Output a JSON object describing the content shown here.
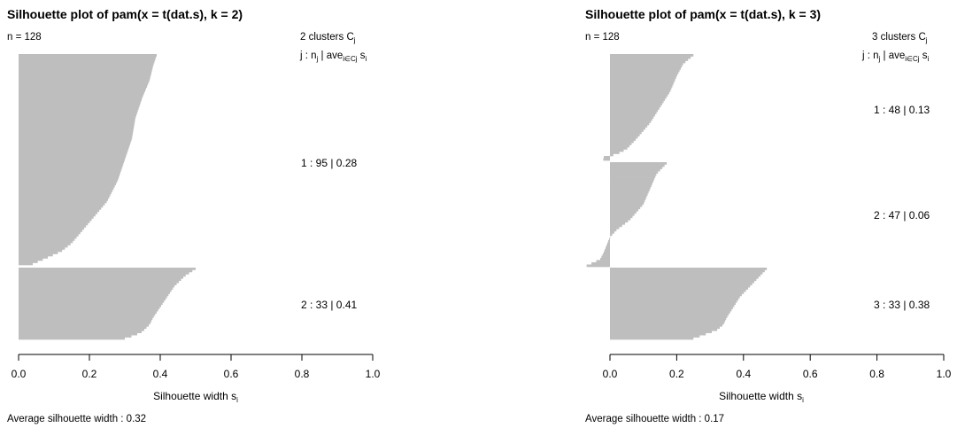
{
  "colors": {
    "bar": "#bebebe",
    "axis": "#000000",
    "background": "#ffffff"
  },
  "chart_data": [
    {
      "type": "bar",
      "orientation": "horizontal",
      "title": "Silhouette plot of pam(x = t(dat.s), k = 2)",
      "n_label": "n = 128",
      "legend_head": {
        "prefix": "2",
        "text": "clusters",
        "sym": "C",
        "sub": "j"
      },
      "legend_sub": {
        "j": "j :",
        "n": "n",
        "nsub": "j",
        "ave": "| ave",
        "avesub": "i∈Cj",
        "s": "s",
        "ssub": "i"
      },
      "xlabel": "Silhouette width",
      "xlabel_sub": "i",
      "xlim": [
        0,
        1
      ],
      "xticks": [
        "0.0",
        "0.2",
        "0.4",
        "0.6",
        "0.8",
        "1.0"
      ],
      "footer": "Average silhouette width :  0.32",
      "average": 0.32,
      "clusters": [
        {
          "label": "1 :   95  |  0.28",
          "n": 95,
          "avg": 0.28,
          "profile": [
            [
              0,
              0.39
            ],
            [
              0.05,
              0.38
            ],
            [
              0.12,
              0.37
            ],
            [
              0.2,
              0.35
            ],
            [
              0.3,
              0.33
            ],
            [
              0.4,
              0.32
            ],
            [
              0.5,
              0.3
            ],
            [
              0.6,
              0.28
            ],
            [
              0.7,
              0.25
            ],
            [
              0.8,
              0.2
            ],
            [
              0.9,
              0.15
            ],
            [
              0.94,
              0.12
            ],
            [
              0.97,
              0.08
            ],
            [
              1,
              0.04
            ]
          ]
        },
        {
          "label": "2 :   33  |  0.41",
          "n": 33,
          "avg": 0.41,
          "profile": [
            [
              0,
              0.5
            ],
            [
              0.1,
              0.47
            ],
            [
              0.25,
              0.44
            ],
            [
              0.4,
              0.42
            ],
            [
              0.55,
              0.4
            ],
            [
              0.7,
              0.38
            ],
            [
              0.8,
              0.37
            ],
            [
              0.9,
              0.35
            ],
            [
              0.95,
              0.33
            ],
            [
              1,
              0.3
            ]
          ]
        }
      ]
    },
    {
      "type": "bar",
      "orientation": "horizontal",
      "title": "Silhouette plot of pam(x = t(dat.s), k = 3)",
      "n_label": "n = 128",
      "legend_head": {
        "prefix": "3",
        "text": "clusters",
        "sym": "C",
        "sub": "j"
      },
      "legend_sub": {
        "j": "j :",
        "n": "n",
        "nsub": "j",
        "ave": "| ave",
        "avesub": "i∈Cj",
        "s": "s",
        "ssub": "i"
      },
      "xlabel": "Silhouette width",
      "xlabel_sub": "i",
      "xlim": [
        0,
        1
      ],
      "xticks": [
        "0.0",
        "0.2",
        "0.4",
        "0.6",
        "0.8",
        "1.0"
      ],
      "footer": "Average silhouette width :  0.17",
      "average": 0.17,
      "clusters": [
        {
          "label": "1 :   48  |  0.13",
          "n": 48,
          "avg": 0.13,
          "profile": [
            [
              0,
              0.25
            ],
            [
              0.08,
              0.22
            ],
            [
              0.2,
              0.2
            ],
            [
              0.35,
              0.18
            ],
            [
              0.5,
              0.15
            ],
            [
              0.65,
              0.12
            ],
            [
              0.8,
              0.08
            ],
            [
              0.9,
              0.05
            ],
            [
              0.95,
              0.02
            ],
            [
              0.98,
              -0.02
            ],
            [
              1,
              -0.02
            ]
          ]
        },
        {
          "label": "2 :   47  |  0.06",
          "n": 47,
          "avg": 0.06,
          "profile": [
            [
              0,
              0.17
            ],
            [
              0.1,
              0.14
            ],
            [
              0.25,
              0.12
            ],
            [
              0.4,
              0.1
            ],
            [
              0.55,
              0.06
            ],
            [
              0.65,
              0.02
            ],
            [
              0.72,
              0.0
            ],
            [
              0.8,
              -0.01
            ],
            [
              0.88,
              -0.02
            ],
            [
              0.94,
              -0.03
            ],
            [
              0.97,
              -0.05
            ],
            [
              1,
              -0.07
            ]
          ]
        },
        {
          "label": "3 :   33  |  0.38",
          "n": 33,
          "avg": 0.38,
          "profile": [
            [
              0,
              0.47
            ],
            [
              0.1,
              0.45
            ],
            [
              0.25,
              0.42
            ],
            [
              0.4,
              0.39
            ],
            [
              0.55,
              0.37
            ],
            [
              0.7,
              0.35
            ],
            [
              0.8,
              0.34
            ],
            [
              0.88,
              0.32
            ],
            [
              0.95,
              0.28
            ],
            [
              1,
              0.25
            ]
          ]
        }
      ]
    }
  ]
}
